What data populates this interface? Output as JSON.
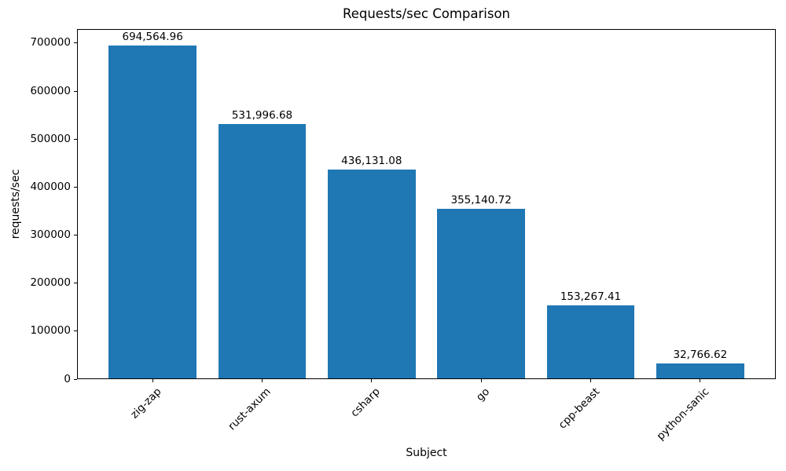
{
  "chart_data": {
    "type": "bar",
    "title": "Requests/sec Comparison",
    "xlabel": "Subject",
    "ylabel": "requests/sec",
    "categories": [
      "zig-zap",
      "rust-axum",
      "csharp",
      "go",
      "cpp-beast",
      "python-sanic"
    ],
    "values": [
      694564.96,
      531996.68,
      436131.08,
      355140.72,
      153267.41,
      32766.62
    ],
    "value_labels": [
      "694,564.96",
      "531,996.68",
      "436,131.08",
      "355,140.72",
      "153,267.41",
      "32,766.62"
    ],
    "bar_color": "#1f77b4",
    "ylim": [
      0,
      729293
    ],
    "yticks": [
      0,
      100000,
      200000,
      300000,
      400000,
      500000,
      600000,
      700000
    ],
    "ytick_labels": [
      "0",
      "100000",
      "200000",
      "300000",
      "400000",
      "500000",
      "600000",
      "700000"
    ],
    "xlim": [
      -0.69,
      5.69
    ],
    "bar_width_units": 0.8,
    "xtick_rotation_deg": 45,
    "grid": false,
    "legend": "none"
  }
}
